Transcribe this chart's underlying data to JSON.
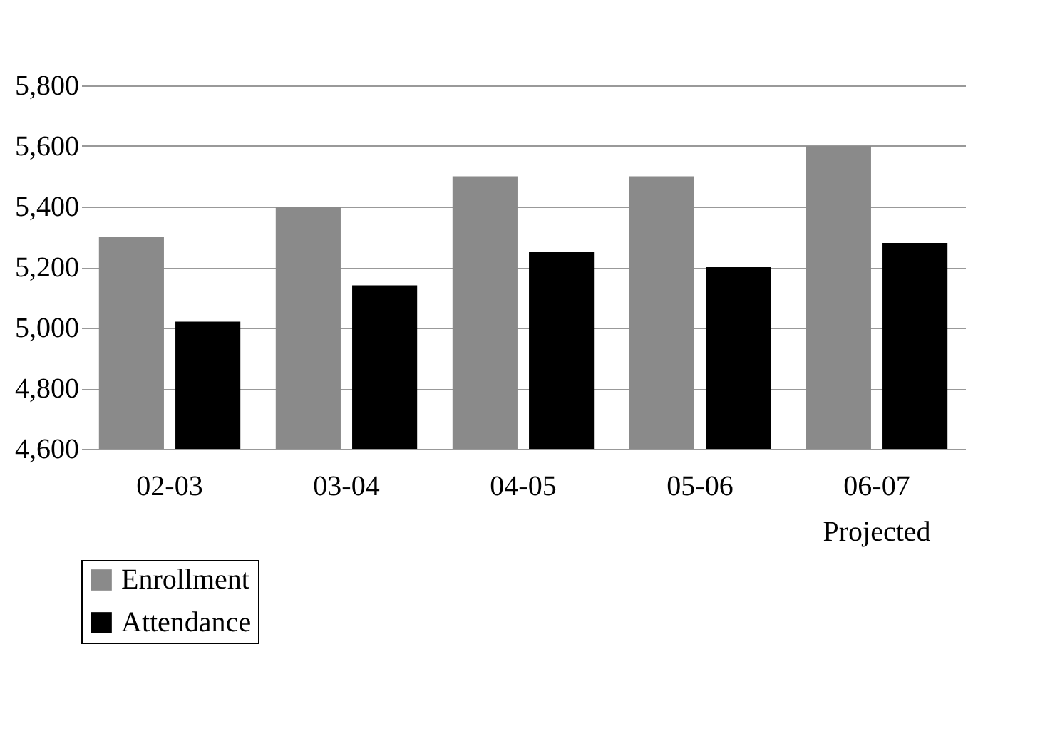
{
  "chart_data": {
    "type": "bar",
    "categories": [
      "02-03",
      "03-04",
      "04-05",
      "05-06",
      "06-07\nProjected"
    ],
    "series": [
      {
        "name": "Enrollment",
        "color": "#8a8a8a",
        "values": [
          5300,
          5400,
          5500,
          5500,
          5600
        ]
      },
      {
        "name": "Attendance",
        "color": "#000000",
        "values": [
          5020,
          5140,
          5250,
          5200,
          5280
        ]
      }
    ],
    "ylim": [
      4600,
      5800
    ],
    "yticks": [
      {
        "value": 4600,
        "label": "4,600"
      },
      {
        "value": 4800,
        "label": "4,800"
      },
      {
        "value": 5000,
        "label": "5,000"
      },
      {
        "value": 5200,
        "label": "5,200"
      },
      {
        "value": 5400,
        "label": "5,400"
      },
      {
        "value": 5600,
        "label": "5,600"
      },
      {
        "value": 5800,
        "label": "5,800"
      }
    ],
    "grid": "y",
    "legend": "bottom"
  }
}
